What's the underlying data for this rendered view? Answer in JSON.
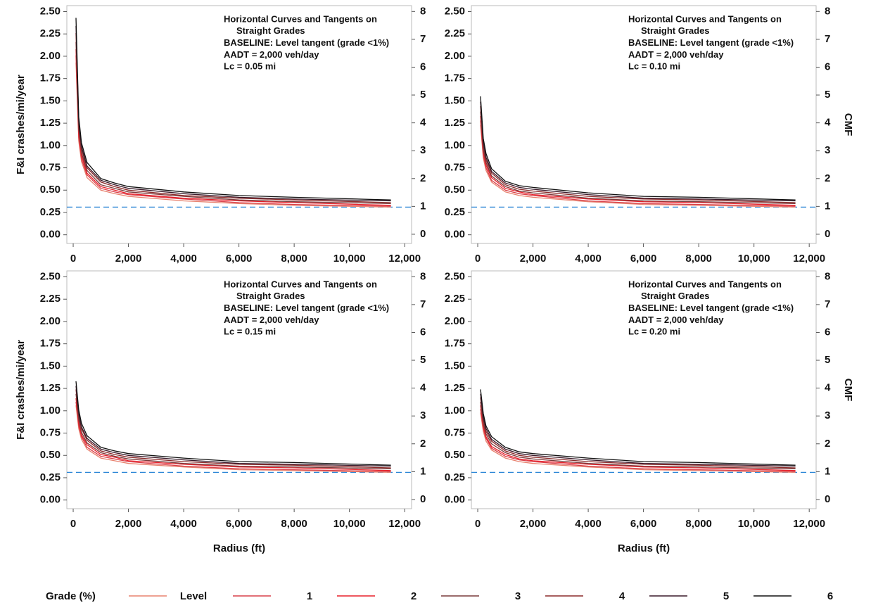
{
  "chart_data": [
    {
      "type": "line",
      "legend_title": "Grade (%)",
      "y_label": "F&I crashes/mi/year",
      "annotation": [
        "Horizontal Curves and Tangents on",
        "Straight Grades",
        "BASELINE: Level tangent (grade <1%)",
        "AADT = 2,000 veh/day",
        "Lc = 0.05 mi"
      ],
      "x": [
        100,
        200,
        300,
        500,
        1000,
        1500,
        2000,
        4000,
        6000,
        8000,
        11500
      ],
      "xlim": [
        -230,
        12250
      ],
      "ylim": [
        -0.097,
        2.567
      ],
      "y2lim": [
        -0.33,
        8.21
      ],
      "xticks": [
        0,
        {
          "value": 2000,
          "label": "2,000"
        },
        {
          "value": 4000,
          "label": "4,000"
        },
        {
          "value": 6000,
          "label": "6,000"
        },
        {
          "value": 8000,
          "label": "8,000"
        },
        {
          "value": 10000,
          "label": "10,000"
        },
        {
          "value": 12000,
          "label": "12,000"
        }
      ],
      "yticks": [
        {
          "value": 0,
          "label": "0.00"
        },
        {
          "value": 0.25,
          "label": "0.25"
        },
        {
          "value": 0.5,
          "label": "0.50"
        },
        {
          "value": 0.75,
          "label": "0.75"
        },
        {
          "value": 1,
          "label": "1.00"
        },
        {
          "value": 1.25,
          "label": "1.25"
        },
        {
          "value": 1.5,
          "label": "1.50"
        },
        {
          "value": 1.75,
          "label": "1.75"
        },
        {
          "value": 2,
          "label": "2.00"
        },
        {
          "value": 2.25,
          "label": "2.25"
        },
        {
          "value": 2.5,
          "label": "2.50"
        }
      ],
      "y2ticks": [
        0,
        1,
        2,
        3,
        4,
        5,
        6,
        7,
        8
      ],
      "hline": 0.31,
      "hline_color": "#2a86d6",
      "series": [
        {
          "name": "Level",
          "color": "#e8826f",
          "values": [
            1.93,
            1.05,
            0.82,
            0.64,
            0.5,
            0.46,
            0.43,
            0.38,
            0.35,
            0.33,
            0.31
          ]
        },
        {
          "name": "1",
          "color": "#d9404a",
          "values": [
            2.01,
            1.09,
            0.85,
            0.67,
            0.52,
            0.48,
            0.45,
            0.4,
            0.36,
            0.34,
            0.32
          ]
        },
        {
          "name": "2",
          "color": "#e8202a",
          "values": [
            2.08,
            1.13,
            0.89,
            0.69,
            0.54,
            0.5,
            0.46,
            0.41,
            0.38,
            0.36,
            0.33
          ]
        },
        {
          "name": "3",
          "color": "#7a3c3c",
          "values": [
            2.16,
            1.18,
            0.92,
            0.72,
            0.56,
            0.52,
            0.48,
            0.43,
            0.39,
            0.37,
            0.35
          ]
        },
        {
          "name": "4",
          "color": "#8b2a2a",
          "values": [
            2.26,
            1.23,
            0.96,
            0.75,
            0.59,
            0.54,
            0.5,
            0.44,
            0.41,
            0.39,
            0.36
          ]
        },
        {
          "name": "5",
          "color": "#3a1a2a",
          "values": [
            2.34,
            1.27,
            0.99,
            0.77,
            0.61,
            0.56,
            0.52,
            0.46,
            0.42,
            0.4,
            0.38
          ]
        },
        {
          "name": "6",
          "color": "#111111",
          "values": [
            2.43,
            1.32,
            1.03,
            0.81,
            0.63,
            0.58,
            0.54,
            0.48,
            0.44,
            0.42,
            0.39
          ]
        }
      ]
    },
    {
      "type": "line",
      "y2_label": "CMF",
      "annotation": [
        "Horizontal Curves and Tangents on",
        "Straight Grades",
        "BASELINE: Level tangent (grade <1%)",
        "AADT = 2,000 veh/day",
        "Lc = 0.10 mi"
      ],
      "x": [
        100,
        200,
        300,
        500,
        1000,
        1500,
        2000,
        4000,
        6000,
        8000,
        11500
      ],
      "xlim": [
        -230,
        12250
      ],
      "ylim": [
        -0.097,
        2.567
      ],
      "y2lim": [
        -0.33,
        8.21
      ],
      "xticks": [
        0,
        {
          "value": 2000,
          "label": "2,000"
        },
        {
          "value": 4000,
          "label": "4,000"
        },
        {
          "value": 6000,
          "label": "6,000"
        },
        {
          "value": 8000,
          "label": "8,000"
        },
        {
          "value": 10000,
          "label": "10,000"
        },
        {
          "value": 12000,
          "label": "12,000"
        }
      ],
      "yticks": [
        {
          "value": 0,
          "label": "0.00"
        },
        {
          "value": 0.25,
          "label": "0.25"
        },
        {
          "value": 0.5,
          "label": "0.50"
        },
        {
          "value": 0.75,
          "label": "0.75"
        },
        {
          "value": 1,
          "label": "1.00"
        },
        {
          "value": 1.25,
          "label": "1.25"
        },
        {
          "value": 1.5,
          "label": "1.50"
        },
        {
          "value": 1.75,
          "label": "1.75"
        },
        {
          "value": 2,
          "label": "2.00"
        },
        {
          "value": 2.25,
          "label": "2.25"
        },
        {
          "value": 2.5,
          "label": "2.50"
        }
      ],
      "y2ticks": [
        0,
        1,
        2,
        3,
        4,
        5,
        6,
        7,
        8
      ],
      "hline": 0.31,
      "hline_color": "#2a86d6",
      "series": [
        {
          "name": "Level",
          "color": "#e8826f",
          "values": [
            1.23,
            0.86,
            0.72,
            0.59,
            0.48,
            0.44,
            0.42,
            0.37,
            0.34,
            0.33,
            0.31
          ]
        },
        {
          "name": "1",
          "color": "#d9404a",
          "values": [
            1.28,
            0.89,
            0.75,
            0.61,
            0.5,
            0.46,
            0.44,
            0.38,
            0.35,
            0.34,
            0.32
          ]
        },
        {
          "name": "2",
          "color": "#e8202a",
          "values": [
            1.33,
            0.93,
            0.78,
            0.64,
            0.52,
            0.48,
            0.45,
            0.4,
            0.37,
            0.36,
            0.33
          ]
        },
        {
          "name": "3",
          "color": "#7a3c3c",
          "values": [
            1.38,
            0.96,
            0.81,
            0.66,
            0.54,
            0.49,
            0.47,
            0.41,
            0.38,
            0.37,
            0.35
          ]
        },
        {
          "name": "4",
          "color": "#8b2a2a",
          "values": [
            1.44,
            1.01,
            0.84,
            0.69,
            0.56,
            0.51,
            0.49,
            0.43,
            0.4,
            0.39,
            0.36
          ]
        },
        {
          "name": "5",
          "color": "#3a1a2a",
          "values": [
            1.49,
            1.04,
            0.87,
            0.71,
            0.58,
            0.53,
            0.51,
            0.45,
            0.41,
            0.4,
            0.38
          ]
        },
        {
          "name": "6",
          "color": "#111111",
          "values": [
            1.55,
            1.08,
            0.91,
            0.74,
            0.6,
            0.55,
            0.53,
            0.47,
            0.43,
            0.42,
            0.39
          ]
        }
      ]
    },
    {
      "type": "line",
      "y_label": "F&I crashes/mi/year",
      "x_label": "Radius (ft)",
      "annotation": [
        "Horizontal Curves and Tangents on",
        "Straight Grades",
        "BASELINE: Level tangent (grade <1%)",
        "AADT = 2,000 veh/day",
        "Lc = 0.15 mi"
      ],
      "x": [
        100,
        200,
        300,
        500,
        1000,
        1500,
        2000,
        4000,
        6000,
        8000,
        11500
      ],
      "xlim": [
        -230,
        12250
      ],
      "ylim": [
        -0.097,
        2.567
      ],
      "y2lim": [
        -0.33,
        8.21
      ],
      "xticks": [
        0,
        {
          "value": 2000,
          "label": "2,000"
        },
        {
          "value": 4000,
          "label": "4,000"
        },
        {
          "value": 6000,
          "label": "6,000"
        },
        {
          "value": 8000,
          "label": "8,000"
        },
        {
          "value": 10000,
          "label": "10,000"
        },
        {
          "value": 12000,
          "label": "12,000"
        }
      ],
      "yticks": [
        {
          "value": 0,
          "label": "0.00"
        },
        {
          "value": 0.25,
          "label": "0.25"
        },
        {
          "value": 0.5,
          "label": "0.50"
        },
        {
          "value": 0.75,
          "label": "0.75"
        },
        {
          "value": 1,
          "label": "1.00"
        },
        {
          "value": 1.25,
          "label": "1.25"
        },
        {
          "value": 1.5,
          "label": "1.50"
        },
        {
          "value": 1.75,
          "label": "1.75"
        },
        {
          "value": 2,
          "label": "2.00"
        },
        {
          "value": 2.25,
          "label": "2.25"
        },
        {
          "value": 2.5,
          "label": "2.50"
        }
      ],
      "y2ticks": [
        0,
        1,
        2,
        3,
        4,
        5,
        6,
        7,
        8
      ],
      "hline": 0.31,
      "hline_color": "#2a86d6",
      "series": [
        {
          "name": "Level",
          "color": "#e8826f",
          "values": [
            1.06,
            0.8,
            0.68,
            0.57,
            0.47,
            0.44,
            0.41,
            0.37,
            0.34,
            0.33,
            0.31
          ]
        },
        {
          "name": "1",
          "color": "#d9404a",
          "values": [
            1.1,
            0.83,
            0.71,
            0.59,
            0.49,
            0.46,
            0.43,
            0.38,
            0.35,
            0.34,
            0.32
          ]
        },
        {
          "name": "2",
          "color": "#e8202a",
          "values": [
            1.14,
            0.86,
            0.73,
            0.62,
            0.51,
            0.48,
            0.44,
            0.4,
            0.37,
            0.36,
            0.33
          ]
        },
        {
          "name": "3",
          "color": "#7a3c3c",
          "values": [
            1.19,
            0.9,
            0.76,
            0.64,
            0.53,
            0.49,
            0.46,
            0.41,
            0.38,
            0.37,
            0.35
          ]
        },
        {
          "name": "4",
          "color": "#8b2a2a",
          "values": [
            1.24,
            0.94,
            0.8,
            0.67,
            0.55,
            0.51,
            0.48,
            0.43,
            0.4,
            0.39,
            0.36
          ]
        },
        {
          "name": "5",
          "color": "#3a1a2a",
          "values": [
            1.28,
            0.97,
            0.82,
            0.69,
            0.57,
            0.53,
            0.5,
            0.45,
            0.41,
            0.4,
            0.38
          ]
        },
        {
          "name": "6",
          "color": "#111111",
          "values": [
            1.33,
            1.01,
            0.86,
            0.72,
            0.59,
            0.55,
            0.52,
            0.47,
            0.43,
            0.42,
            0.39
          ]
        }
      ]
    },
    {
      "type": "line",
      "y2_label": "CMF",
      "x_label": "Radius (ft)",
      "annotation": [
        "Horizontal Curves and Tangents on",
        "Straight Grades",
        "BASELINE: Level tangent (grade <1%)",
        "AADT = 2,000 veh/day",
        "Lc = 0.20 mi"
      ],
      "x": [
        100,
        200,
        300,
        500,
        1000,
        1500,
        2000,
        4000,
        6000,
        8000,
        11500
      ],
      "xlim": [
        -230,
        12250
      ],
      "ylim": [
        -0.097,
        2.567
      ],
      "y2lim": [
        -0.33,
        8.21
      ],
      "xticks": [
        0,
        {
          "value": 2000,
          "label": "2,000"
        },
        {
          "value": 4000,
          "label": "4,000"
        },
        {
          "value": 6000,
          "label": "6,000"
        },
        {
          "value": 8000,
          "label": "8,000"
        },
        {
          "value": 10000,
          "label": "10,000"
        },
        {
          "value": 12000,
          "label": "12,000"
        }
      ],
      "yticks": [
        {
          "value": 0,
          "label": "0.00"
        },
        {
          "value": 0.25,
          "label": "0.25"
        },
        {
          "value": 0.5,
          "label": "0.50"
        },
        {
          "value": 0.75,
          "label": "0.75"
        },
        {
          "value": 1,
          "label": "1.00"
        },
        {
          "value": 1.25,
          "label": "1.25"
        },
        {
          "value": 1.5,
          "label": "1.50"
        },
        {
          "value": 1.75,
          "label": "1.75"
        },
        {
          "value": 2,
          "label": "2.00"
        },
        {
          "value": 2.25,
          "label": "2.25"
        },
        {
          "value": 2.5,
          "label": "2.50"
        }
      ],
      "y2ticks": [
        0,
        1,
        2,
        3,
        4,
        5,
        6,
        7,
        8
      ],
      "hline": 0.31,
      "hline_color": "#2a86d6",
      "series": [
        {
          "name": "Level",
          "color": "#e8826f",
          "values": [
            0.98,
            0.77,
            0.66,
            0.56,
            0.47,
            0.43,
            0.41,
            0.37,
            0.34,
            0.33,
            0.31
          ]
        },
        {
          "name": "1",
          "color": "#d9404a",
          "values": [
            1.02,
            0.8,
            0.69,
            0.58,
            0.49,
            0.45,
            0.43,
            0.38,
            0.35,
            0.34,
            0.32
          ]
        },
        {
          "name": "2",
          "color": "#e8202a",
          "values": [
            1.06,
            0.83,
            0.71,
            0.6,
            0.51,
            0.46,
            0.44,
            0.4,
            0.37,
            0.36,
            0.33
          ]
        },
        {
          "name": "3",
          "color": "#7a3c3c",
          "values": [
            1.1,
            0.86,
            0.74,
            0.63,
            0.53,
            0.48,
            0.46,
            0.41,
            0.38,
            0.37,
            0.35
          ]
        },
        {
          "name": "4",
          "color": "#8b2a2a",
          "values": [
            1.15,
            0.9,
            0.77,
            0.66,
            0.55,
            0.5,
            0.48,
            0.43,
            0.4,
            0.39,
            0.36
          ]
        },
        {
          "name": "5",
          "color": "#3a1a2a",
          "values": [
            1.19,
            0.93,
            0.8,
            0.68,
            0.57,
            0.52,
            0.5,
            0.45,
            0.41,
            0.4,
            0.38
          ]
        },
        {
          "name": "6",
          "color": "#111111",
          "values": [
            1.24,
            0.97,
            0.83,
            0.71,
            0.59,
            0.54,
            0.52,
            0.47,
            0.43,
            0.42,
            0.39
          ]
        }
      ]
    }
  ]
}
